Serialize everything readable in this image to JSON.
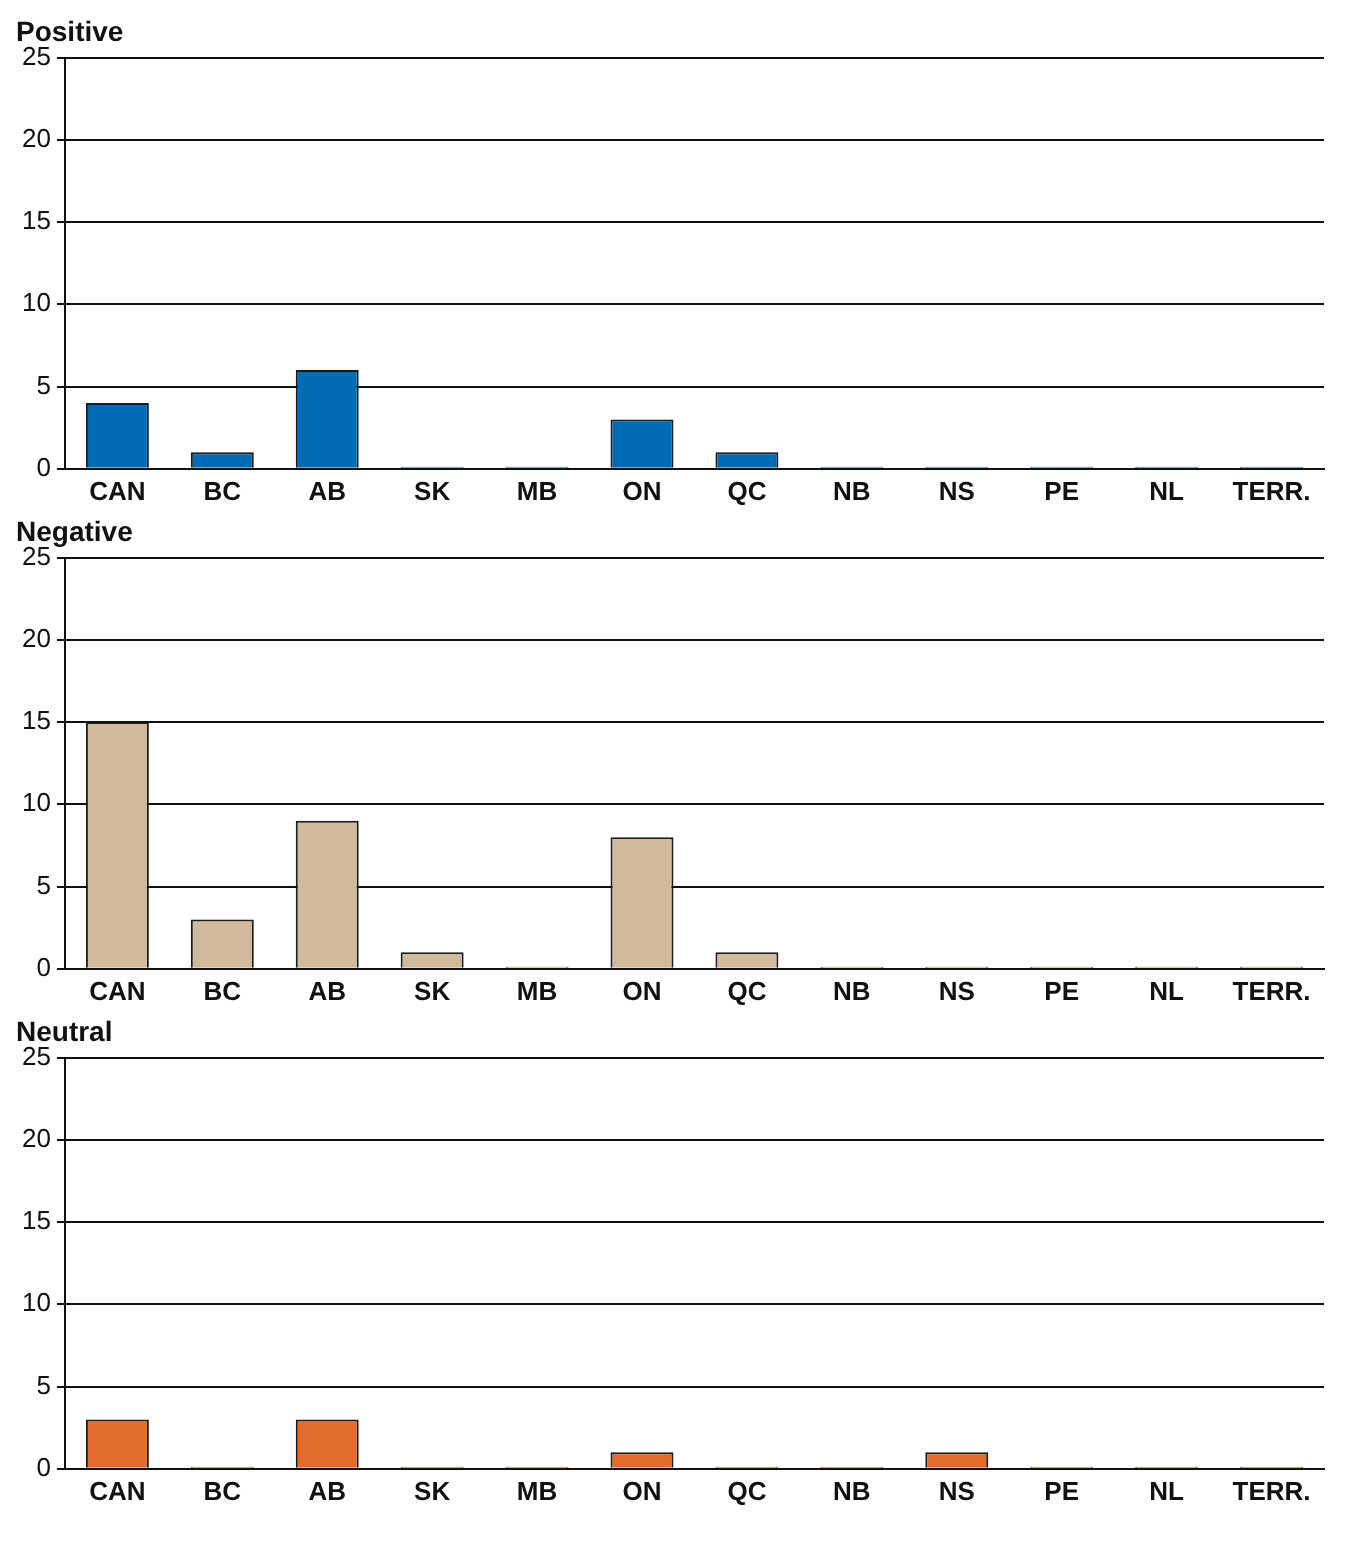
{
  "chart_data": [
    {
      "type": "bar",
      "title": "Positive",
      "categories": [
        "CAN",
        "BC",
        "AB",
        "SK",
        "MB",
        "ON",
        "QC",
        "NB",
        "NS",
        "PE",
        "NL",
        "TERR."
      ],
      "values": [
        4,
        1,
        6,
        0,
        0,
        3,
        1,
        0,
        0,
        0,
        0,
        0
      ],
      "color": "#006cb5",
      "ylim": [
        0,
        25
      ],
      "yticks": [
        0,
        5,
        10,
        15,
        20,
        25
      ],
      "grid": "y"
    },
    {
      "type": "bar",
      "title": "Negative",
      "categories": [
        "CAN",
        "BC",
        "AB",
        "SK",
        "MB",
        "ON",
        "QC",
        "NB",
        "NS",
        "PE",
        "NL",
        "TERR."
      ],
      "values": [
        15,
        3,
        9,
        1,
        0,
        8,
        1,
        0,
        0,
        0,
        0,
        0
      ],
      "color": "#d1b99b",
      "ylim": [
        0,
        25
      ],
      "yticks": [
        0,
        5,
        10,
        15,
        20,
        25
      ],
      "grid": "y"
    },
    {
      "type": "bar",
      "title": "Neutral",
      "categories": [
        "CAN",
        "BC",
        "AB",
        "SK",
        "MB",
        "ON",
        "QC",
        "NB",
        "NS",
        "PE",
        "NL",
        "TERR."
      ],
      "values": [
        3,
        0,
        3,
        0,
        0,
        1,
        0,
        0,
        1,
        0,
        0,
        0
      ],
      "color": "#e36b2c",
      "ylim": [
        0,
        25
      ],
      "yticks": [
        0,
        5,
        10,
        15,
        20,
        25
      ],
      "grid": "y"
    }
  ]
}
